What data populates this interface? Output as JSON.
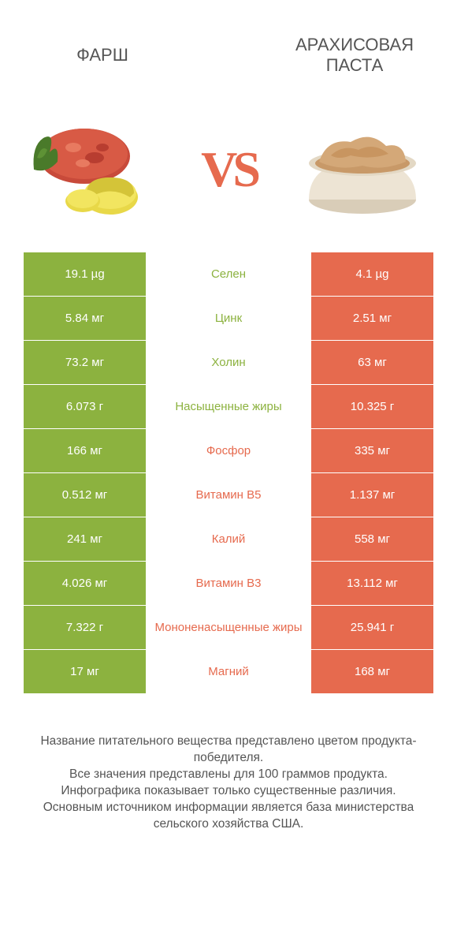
{
  "colors": {
    "green": "#8cb23f",
    "orange": "#e66a4e",
    "text": "#555555",
    "white": "#ffffff",
    "green_text": "#8cb23f",
    "orange_text": "#e66a4e"
  },
  "header": {
    "left_title": "ФАРШ",
    "right_title": "АРАХИСОВАЯ ПАСТА",
    "vs": "VS"
  },
  "rows": [
    {
      "left": "19.1 µg",
      "label": "Селен",
      "right": "4.1 µg",
      "winner": "left"
    },
    {
      "left": "5.84 мг",
      "label": "Цинк",
      "right": "2.51 мг",
      "winner": "left"
    },
    {
      "left": "73.2 мг",
      "label": "Холин",
      "right": "63 мг",
      "winner": "left"
    },
    {
      "left": "6.073 г",
      "label": "Насыщенные жиры",
      "right": "10.325 г",
      "winner": "left"
    },
    {
      "left": "166 мг",
      "label": "Фосфор",
      "right": "335 мг",
      "winner": "right"
    },
    {
      "left": "0.512 мг",
      "label": "Витамин B5",
      "right": "1.137 мг",
      "winner": "right"
    },
    {
      "left": "241 мг",
      "label": "Калий",
      "right": "558 мг",
      "winner": "right"
    },
    {
      "left": "4.026 мг",
      "label": "Витамин B3",
      "right": "13.112 мг",
      "winner": "right"
    },
    {
      "left": "7.322 г",
      "label": "Мононенасыщенные жиры",
      "right": "25.941 г",
      "winner": "right"
    },
    {
      "left": "17 мг",
      "label": "Магний",
      "right": "168 мг",
      "winner": "right"
    }
  ],
  "footer": {
    "line1": "Название питательного вещества представлено цветом продукта-победителя.",
    "line2": "Все значения представлены для 100 граммов продукта.",
    "line3": "Инфографика показывает только существенные различия.",
    "line4": "Основным источником информации является база министерства сельского хозяйства США."
  }
}
